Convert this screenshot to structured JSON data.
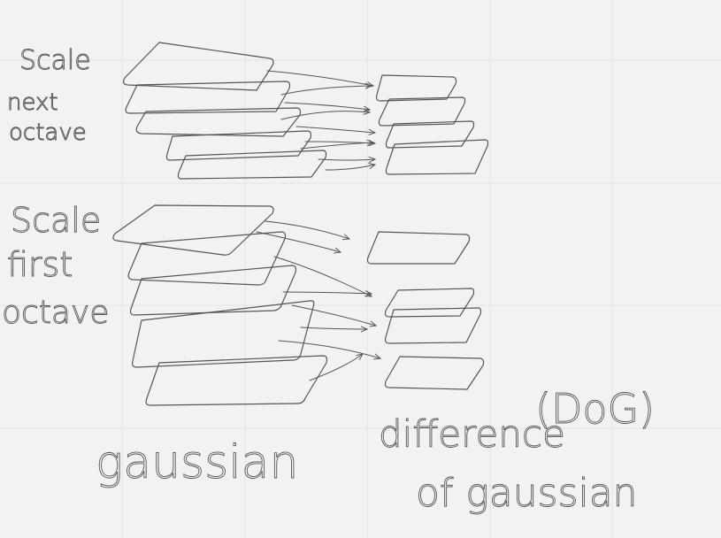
{
  "labels": {
    "next_octave": [
      "Scale",
      "next",
      "octave"
    ],
    "first_octave": [
      "Scale",
      "first",
      "octave"
    ],
    "gaussian": "gaussian",
    "dog_top": "difference",
    "dog_abbrev": "(DoG)",
    "dog_bottom": "of gaussian"
  },
  "colors": {
    "background": "#f2f2f2",
    "grid": "#e4e4e4",
    "ink": "#555555"
  }
}
